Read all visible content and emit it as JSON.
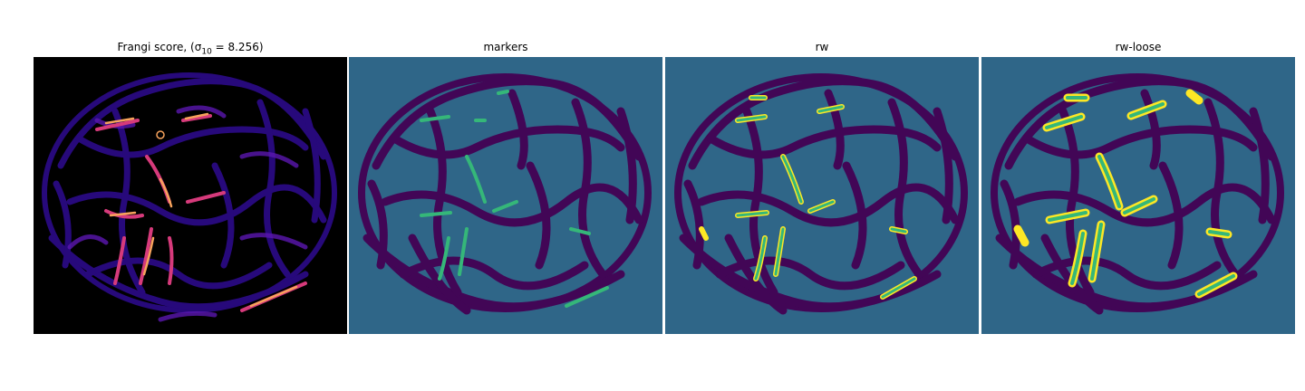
{
  "panels": [
    {
      "title": "Frangi score, (σ",
      "title_sub": "10",
      "title_tail": " = 8.256)",
      "colormap": "magma",
      "background": "#000000",
      "fill": "#2a0a82",
      "highlight": "#f7a35c"
    },
    {
      "title": "markers",
      "colormap": "viridis",
      "background": "#2f6688",
      "fill": "#440154",
      "highlight": "#35b779"
    },
    {
      "title": "rw",
      "colormap": "viridis",
      "background": "#2f6688",
      "fill": "#440154",
      "highlight": "#35b779",
      "outline": "#fde725"
    },
    {
      "title": "rw-loose",
      "colormap": "viridis",
      "background": "#2f6688",
      "fill": "#440154",
      "highlight": "#35b779",
      "outline": "#fde725"
    }
  ]
}
